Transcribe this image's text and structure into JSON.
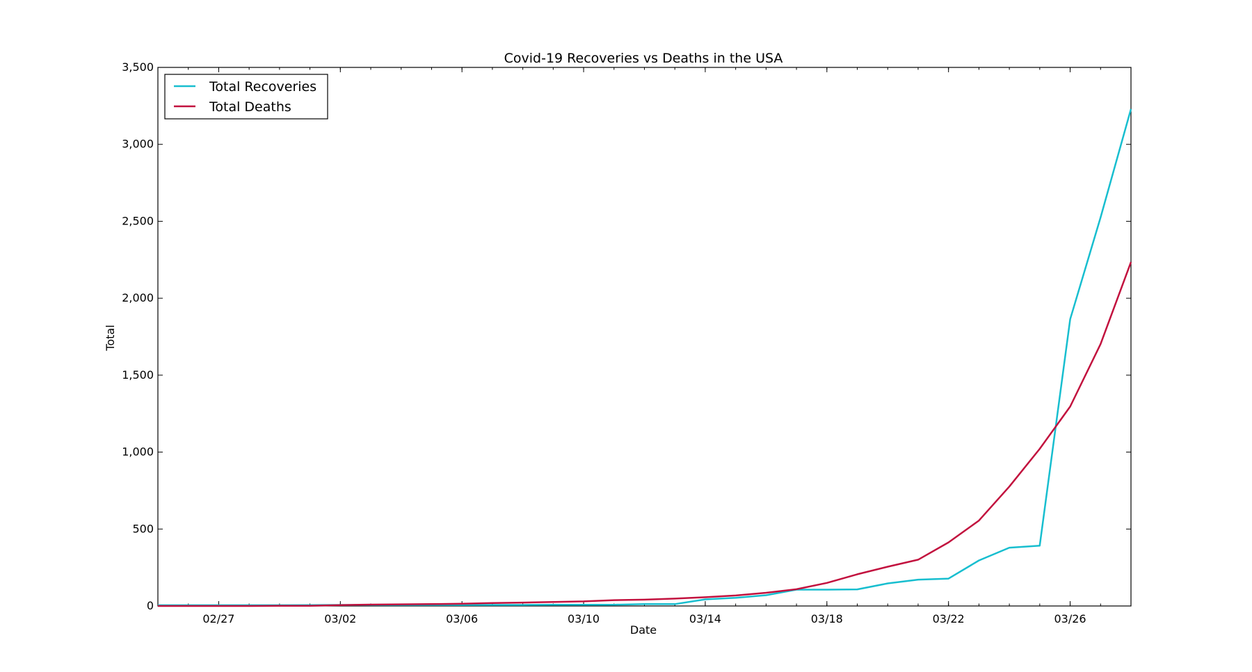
{
  "chart_data": {
    "type": "line",
    "title": "Covid-19 Recoveries vs Deaths in the USA",
    "xlabel": "Date",
    "ylabel": "Total",
    "x": [
      "02/25",
      "02/26",
      "02/27",
      "02/28",
      "02/29",
      "03/01",
      "03/02",
      "03/03",
      "03/04",
      "03/05",
      "03/06",
      "03/07",
      "03/08",
      "03/09",
      "03/10",
      "03/11",
      "03/12",
      "03/13",
      "03/14",
      "03/15",
      "03/16",
      "03/17",
      "03/18",
      "03/19",
      "03/20",
      "03/21",
      "03/22",
      "03/23",
      "03/24",
      "03/25",
      "03/26",
      "03/27",
      "03/28"
    ],
    "xticks": [
      "02/27",
      "03/02",
      "03/06",
      "03/10",
      "03/14",
      "03/18",
      "03/22",
      "03/26"
    ],
    "ylim": [
      0,
      3500
    ],
    "yticks": [
      "0",
      "500",
      "1,000",
      "1,500",
      "2,000",
      "2,500",
      "3,000",
      "3,500"
    ],
    "series": [
      {
        "name": "Total Recoveries",
        "color": "#17becf",
        "values": [
          5,
          5,
          5,
          5,
          5,
          6,
          7,
          7,
          7,
          7,
          7,
          7,
          7,
          8,
          8,
          8,
          12,
          12,
          43,
          53,
          70,
          106,
          106,
          108,
          147,
          171,
          178,
          296,
          379,
          392,
          1864,
          2525,
          3230
        ]
      },
      {
        "name": "Total Deaths",
        "color": "#c2113e",
        "values": [
          0,
          0,
          0,
          0,
          1,
          1,
          6,
          9,
          11,
          12,
          15,
          19,
          22,
          26,
          30,
          38,
          41,
          48,
          57,
          68,
          86,
          109,
          150,
          206,
          255,
          301,
          413,
          555,
          776,
          1021,
          1296,
          1702,
          2235
        ]
      }
    ],
    "legend_position": "top-left",
    "grid": false
  }
}
